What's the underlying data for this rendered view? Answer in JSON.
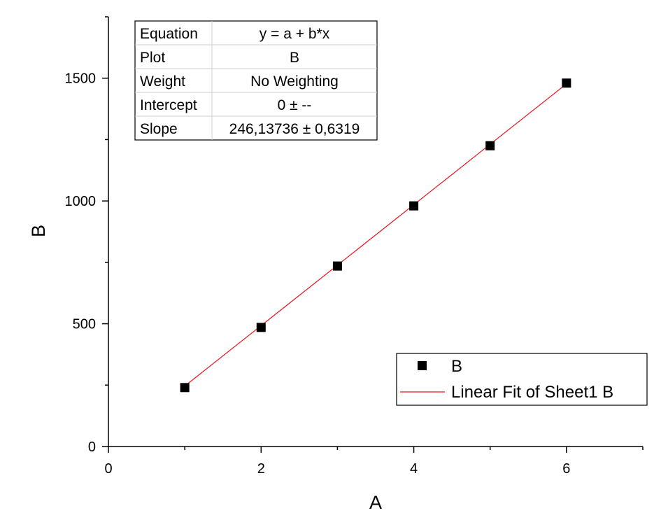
{
  "chart_data": {
    "type": "scatter",
    "title": "",
    "xlabel": "A",
    "ylabel": "B",
    "xlim": [
      0,
      7
    ],
    "ylim": [
      0,
      1750
    ],
    "x_ticks": [
      0,
      2,
      4,
      6
    ],
    "y_ticks": [
      0,
      500,
      1000,
      1500
    ],
    "grid": false,
    "series": [
      {
        "name": "B",
        "marker": "square",
        "color": "#000000",
        "x": [
          1,
          2,
          3,
          4,
          5,
          6
        ],
        "y": [
          240,
          485,
          735,
          980,
          1225,
          1480
        ]
      }
    ],
    "fit": {
      "name": "Linear Fit of Sheet1 B",
      "color": "#e8141e",
      "intercept": 0,
      "slope": 246.13736,
      "x_range": [
        1,
        6
      ]
    },
    "legend": {
      "position": "bottom-right",
      "entries": [
        "B",
        "Linear Fit of Sheet1 B"
      ]
    },
    "stats_table": {
      "position": "top-left",
      "rows": [
        {
          "label": "Equation",
          "value": "y = a + b*x"
        },
        {
          "label": "Plot",
          "value": "B"
        },
        {
          "label": "Weight",
          "value": "No Weighting"
        },
        {
          "label": "Intercept",
          "value": "0 ± --"
        },
        {
          "label": "Slope",
          "value": "246,13736 ± 0,6319"
        }
      ]
    }
  }
}
